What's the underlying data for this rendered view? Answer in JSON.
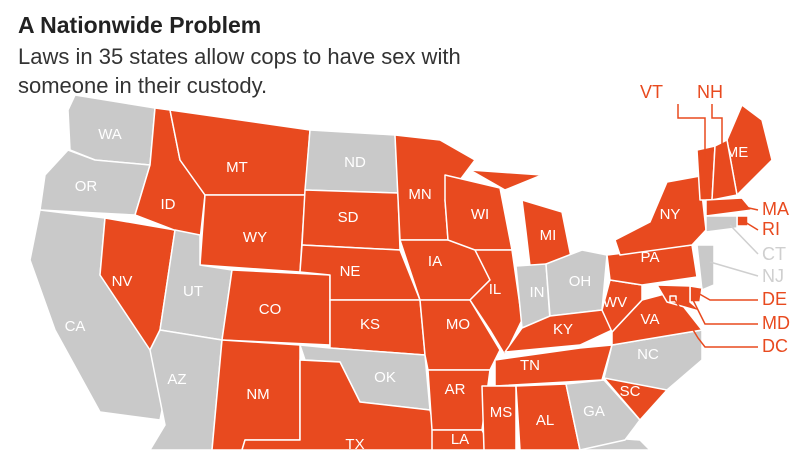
{
  "header": {
    "title": "A Nationwide Problem",
    "subtitle": "Laws in 35 states allow cops to have sex with someone in their custody."
  },
  "map": {
    "states": [
      {
        "label": "WA",
        "color": "#c9c9c9",
        "label_color": "#ffffff"
      },
      {
        "label": "OR",
        "color": "#c9c9c9",
        "label_color": "#ffffff"
      },
      {
        "label": "CA",
        "color": "#c9c9c9",
        "label_color": "#ffffff"
      },
      {
        "label": "NV",
        "color": "#e84a1f",
        "label_color": "#ffffff"
      },
      {
        "label": "ID",
        "color": "#e84a1f",
        "label_color": "#ffffff"
      },
      {
        "label": "MT",
        "color": "#e84a1f",
        "label_color": "#ffffff"
      },
      {
        "label": "WY",
        "color": "#e84a1f",
        "label_color": "#ffffff"
      },
      {
        "label": "UT",
        "color": "#c9c9c9",
        "label_color": "#ffffff"
      },
      {
        "label": "AZ",
        "color": "#c9c9c9",
        "label_color": "#ffffff"
      },
      {
        "label": "CO",
        "color": "#e84a1f",
        "label_color": "#ffffff"
      },
      {
        "label": "NM",
        "color": "#e84a1f",
        "label_color": "#ffffff"
      },
      {
        "label": "ND",
        "color": "#c9c9c9",
        "label_color": "#ffffff"
      },
      {
        "label": "SD",
        "color": "#e84a1f",
        "label_color": "#ffffff"
      },
      {
        "label": "NE",
        "color": "#e84a1f",
        "label_color": "#ffffff"
      },
      {
        "label": "KS",
        "color": "#e84a1f",
        "label_color": "#ffffff"
      },
      {
        "label": "OK",
        "color": "#c9c9c9",
        "label_color": "#ffffff"
      },
      {
        "label": "TX",
        "color": "#e84a1f",
        "label_color": "#ffffff"
      },
      {
        "label": "MN",
        "color": "#e84a1f",
        "label_color": "#ffffff"
      },
      {
        "label": "IA",
        "color": "#e84a1f",
        "label_color": "#ffffff"
      },
      {
        "label": "MO",
        "color": "#e84a1f",
        "label_color": "#ffffff"
      },
      {
        "label": "AR",
        "color": "#e84a1f",
        "label_color": "#ffffff"
      },
      {
        "label": "LA",
        "color": "#e84a1f",
        "label_color": "#ffffff"
      },
      {
        "label": "WI",
        "color": "#e84a1f",
        "label_color": "#ffffff"
      },
      {
        "label": "IL",
        "color": "#e84a1f",
        "label_color": "#ffffff"
      },
      {
        "label": "MI",
        "color": "#e84a1f",
        "label_color": "#ffffff"
      },
      {
        "label": "IN",
        "color": "#c9c9c9",
        "label_color": "#ffffff"
      },
      {
        "label": "OH",
        "color": "#c9c9c9",
        "label_color": "#ffffff"
      },
      {
        "label": "KY",
        "color": "#e84a1f",
        "label_color": "#ffffff"
      },
      {
        "label": "TN",
        "color": "#e84a1f",
        "label_color": "#ffffff"
      },
      {
        "label": "MS",
        "color": "#e84a1f",
        "label_color": "#ffffff"
      },
      {
        "label": "AL",
        "color": "#e84a1f",
        "label_color": "#ffffff"
      },
      {
        "label": "GA",
        "color": "#c9c9c9",
        "label_color": "#ffffff"
      },
      {
        "label": "SC",
        "color": "#e84a1f",
        "label_color": "#ffffff"
      },
      {
        "label": "NC",
        "color": "#c9c9c9",
        "label_color": "#ffffff"
      },
      {
        "label": "VA",
        "color": "#e84a1f",
        "label_color": "#ffffff"
      },
      {
        "label": "WV",
        "color": "#e84a1f",
        "label_color": "#ffffff"
      },
      {
        "label": "PA",
        "color": "#e84a1f",
        "label_color": "#ffffff"
      },
      {
        "label": "NY",
        "color": "#e84a1f",
        "label_color": "#ffffff"
      },
      {
        "label": "ME",
        "color": "#e84a1f",
        "label_color": "#ffffff"
      },
      {
        "label": "VT",
        "color": "#e84a1f",
        "label_color": "#e84a1f"
      },
      {
        "label": "NH",
        "color": "#e84a1f",
        "label_color": "#e84a1f"
      },
      {
        "label": "MA",
        "color": "#e84a1f",
        "label_color": "#e84a1f"
      },
      {
        "label": "RI",
        "color": "#e84a1f",
        "label_color": "#e84a1f"
      },
      {
        "label": "CT",
        "color": "#c9c9c9",
        "label_color": "#cfcfcf"
      },
      {
        "label": "NJ",
        "color": "#c9c9c9",
        "label_color": "#cfcfcf"
      },
      {
        "label": "DE",
        "color": "#e84a1f",
        "label_color": "#e84a1f"
      },
      {
        "label": "MD",
        "color": "#e84a1f",
        "label_color": "#e84a1f"
      },
      {
        "label": "DC",
        "color": "#e84a1f",
        "label_color": "#e84a1f"
      }
    ]
  }
}
